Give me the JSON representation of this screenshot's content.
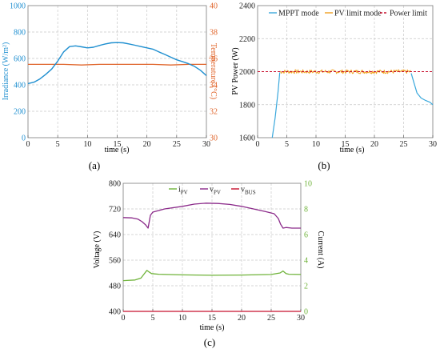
{
  "chart_data": [
    {
      "id": "a",
      "type": "line",
      "caption": "(a)",
      "xlabel": "time (s)",
      "xlim": [
        0,
        30
      ],
      "xticks": [
        0,
        5,
        10,
        15,
        20,
        25,
        30
      ],
      "ylabel_left": "Irradiance (W/m²)",
      "ylim_left": [
        0,
        1000
      ],
      "yticks_left": [
        0,
        200,
        400,
        600,
        800,
        1000
      ],
      "ylabel_right": "Temperature (°C)",
      "ylim_right": [
        30,
        40
      ],
      "yticks_right": [
        30,
        32,
        34,
        36,
        38,
        40
      ],
      "grid": true,
      "colors": {
        "irradiance": "#1f8fd0",
        "temperature": "#e0642a"
      },
      "series": [
        {
          "axis": "left",
          "x": [
            0,
            1,
            2,
            3,
            4,
            5,
            6,
            7,
            8,
            9,
            10,
            11,
            12,
            13,
            14,
            15,
            16,
            17,
            18,
            19,
            20,
            21,
            22,
            23,
            24,
            25,
            26,
            27,
            28,
            29,
            30
          ],
          "values": [
            410,
            420,
            445,
            480,
            520,
            580,
            650,
            690,
            695,
            688,
            680,
            685,
            698,
            710,
            718,
            720,
            718,
            710,
            700,
            690,
            680,
            670,
            650,
            630,
            610,
            590,
            575,
            560,
            540,
            510,
            470
          ]
        },
        {
          "axis": "right",
          "x": [
            0,
            3,
            6,
            9,
            12,
            15,
            18,
            21,
            24,
            27,
            30
          ],
          "values": [
            35.55,
            35.55,
            35.55,
            35.5,
            35.55,
            35.55,
            35.55,
            35.55,
            35.5,
            35.55,
            35.55
          ]
        }
      ]
    },
    {
      "id": "b",
      "type": "line",
      "caption": "(b)",
      "xlabel": "time (s)",
      "xlim": [
        0,
        30
      ],
      "xticks": [
        0,
        5,
        10,
        15,
        20,
        25,
        30
      ],
      "ylabel": "PV Power (W)",
      "ylim": [
        1600,
        2400
      ],
      "yticks": [
        1600,
        1800,
        2000,
        2200,
        2400
      ],
      "grid": true,
      "legend": "top-right",
      "legend_entries": [
        "MPPT mode",
        "PV limit mode",
        "Power limit"
      ],
      "colors": {
        "mppt": "#3aa8dc",
        "pv_limit": "#f0a020",
        "power_limit": "#c8102e"
      },
      "series": [
        {
          "name": "MPPT mode",
          "x": [
            2.5,
            3.0,
            3.5,
            3.8
          ],
          "values": [
            1600,
            1720,
            1880,
            1995
          ],
          "x2": [
            26.3,
            26.8,
            27.3,
            28,
            28.8,
            29.5,
            30
          ],
          "values2": [
            1990,
            1930,
            1870,
            1840,
            1825,
            1815,
            1800
          ]
        },
        {
          "name": "PV limit mode",
          "x_start": 3.8,
          "x_end": 26.3,
          "center": 2000,
          "jitter": 12
        },
        {
          "name": "Power limit",
          "x": [
            0,
            30
          ],
          "values": [
            2000,
            2000
          ]
        }
      ]
    },
    {
      "id": "c",
      "type": "line",
      "caption": "(c)",
      "xlabel": "time (s)",
      "xlim": [
        0,
        30
      ],
      "xticks": [
        0,
        5,
        10,
        15,
        20,
        25,
        30
      ],
      "ylabel_left": "Voltage (V)",
      "ylim_left": [
        400,
        800
      ],
      "yticks_left": [
        400,
        480,
        560,
        640,
        720,
        800
      ],
      "ylabel_right": "Current (A)",
      "ylim_right": [
        0,
        10
      ],
      "yticks_right": [
        0,
        2,
        4,
        6,
        8,
        10
      ],
      "grid": true,
      "legend": "top",
      "legend_entries": [
        {
          "main": "i",
          "sub": "PV"
        },
        {
          "main": "v",
          "sub": "PV"
        },
        {
          "main": "v",
          "sub": "BUS"
        }
      ],
      "colors": {
        "ipv": "#6fb33a",
        "vpv": "#8b2a8a",
        "vbus": "#c8102e"
      },
      "series": [
        {
          "name": "iPV",
          "axis": "right",
          "x": [
            0,
            2,
            3,
            3.5,
            4,
            4.3,
            4.8,
            6,
            10,
            15,
            20,
            25,
            26.5,
            27,
            27.5,
            28,
            30
          ],
          "values": [
            2.4,
            2.45,
            2.6,
            2.9,
            3.2,
            3.1,
            2.95,
            2.9,
            2.85,
            2.82,
            2.84,
            2.88,
            3.0,
            3.15,
            2.95,
            2.9,
            2.88
          ]
        },
        {
          "name": "vPV",
          "axis": "left",
          "x": [
            0,
            1.5,
            2.5,
            3.2,
            3.8,
            4.2,
            4.6,
            5,
            7,
            10,
            12,
            14,
            16,
            18,
            20,
            22,
            24,
            25.5,
            26.2,
            26.6,
            27,
            27.5,
            28.5,
            30
          ],
          "values": [
            693,
            692,
            688,
            680,
            670,
            660,
            700,
            710,
            720,
            728,
            735,
            738,
            737,
            734,
            728,
            720,
            712,
            705,
            690,
            672,
            660,
            662,
            660,
            660
          ]
        },
        {
          "name": "vBUS",
          "axis": "left",
          "x": [
            0,
            30
          ],
          "values": [
            400,
            400
          ]
        }
      ]
    }
  ]
}
